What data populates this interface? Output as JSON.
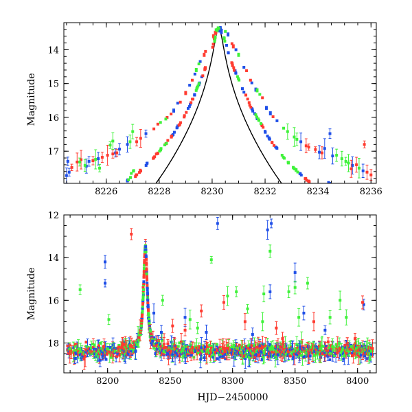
{
  "colors": {
    "red": "#ff3b30",
    "green": "#3ff23a",
    "blue": "#1f4fe8",
    "curve": "#000000"
  },
  "chart_data": [
    {
      "type": "scatter",
      "ylabel": "Magnitude",
      "xlim": [
        8224.4,
        8236.2
      ],
      "ylim": [
        17.95,
        13.2
      ],
      "inverted_y": true,
      "xticks": [
        8226,
        8228,
        8230,
        8232,
        8234,
        8236
      ],
      "yticks": [
        14,
        15,
        16,
        17
      ],
      "xtick_labels": [
        "8226",
        "8228",
        "8230",
        "8232",
        "8234",
        "8236"
      ],
      "ytick_labels": [
        "14",
        "15",
        "16",
        "17"
      ],
      "grid": false,
      "model": {
        "t0": 8230.25,
        "peak_mag": 13.35,
        "base_mag": 19.0,
        "tE": 1.6,
        "u0": 0.09
      },
      "series": [
        {
          "color": "blue",
          "points": [
            [
              8224.5,
              17.72
            ],
            [
              8224.55,
              17.3
            ],
            [
              8224.6,
              17.62
            ],
            [
              8225.25,
              17.44
            ],
            [
              8225.35,
              17.3
            ],
            [
              8225.7,
              17.22
            ],
            [
              8226.35,
              17.05
            ],
            [
              8226.5,
              16.94
            ],
            [
              8226.8,
              16.8
            ],
            [
              8227.5,
              16.48
            ],
            [
              8228.55,
              15.8
            ],
            [
              8228.7,
              15.58
            ],
            [
              8229.15,
              15.05
            ],
            [
              8229.35,
              14.72
            ],
            [
              8229.55,
              14.35
            ],
            [
              8230.25,
              13.43
            ],
            [
              8230.35,
              13.42
            ],
            [
              8230.6,
              13.55
            ],
            [
              8230.9,
              14.0
            ],
            [
              8231.2,
              14.52
            ],
            [
              8231.5,
              14.98
            ],
            [
              8231.65,
              15.18
            ],
            [
              8232.05,
              15.72
            ],
            [
              8232.2,
              15.88
            ],
            [
              8232.45,
              16.1
            ],
            [
              8233.35,
              16.72
            ],
            [
              8234.05,
              17.03
            ],
            [
              8234.25,
              16.92
            ],
            [
              8234.45,
              16.48
            ],
            [
              8234.55,
              17.14
            ],
            [
              8235.3,
              17.42
            ],
            [
              8235.7,
              17.58
            ]
          ]
        },
        {
          "color": "red",
          "points": [
            [
              8224.7,
              17.48
            ],
            [
              8224.9,
              17.32
            ],
            [
              8225.05,
              17.25
            ],
            [
              8225.5,
              17.28
            ],
            [
              8225.85,
              17.18
            ],
            [
              8226.05,
              17.12
            ],
            [
              8226.25,
              17.08
            ],
            [
              8226.4,
              17.05
            ],
            [
              8227.15,
              16.72
            ],
            [
              8227.3,
              16.62
            ],
            [
              8227.8,
              16.34
            ],
            [
              8227.95,
              16.2
            ],
            [
              8228.3,
              16.0
            ],
            [
              8228.45,
              15.9
            ],
            [
              8228.8,
              15.55
            ],
            [
              8229.0,
              15.28
            ],
            [
              8229.25,
              14.9
            ],
            [
              8229.7,
              14.15
            ],
            [
              8229.75,
              14.05
            ],
            [
              8230.05,
              13.6
            ],
            [
              8230.12,
              13.5
            ],
            [
              8230.75,
              13.82
            ],
            [
              8230.8,
              13.9
            ],
            [
              8231.3,
              14.62
            ],
            [
              8231.45,
              14.9
            ],
            [
              8231.9,
              15.42
            ],
            [
              8232.3,
              15.98
            ],
            [
              8233.55,
              16.84
            ],
            [
              8233.65,
              16.88
            ],
            [
              8233.9,
              16.95
            ],
            [
              8234.15,
              17.05
            ],
            [
              8235.25,
              17.52
            ],
            [
              8235.45,
              17.4
            ],
            [
              8235.75,
              16.8
            ],
            [
              8235.85,
              17.62
            ],
            [
              8236.0,
              17.7
            ]
          ]
        },
        {
          "color": "green",
          "points": [
            [
              8225.0,
              17.32
            ],
            [
              8225.2,
              17.42
            ],
            [
              8225.6,
              17.24
            ],
            [
              8225.75,
              17.5
            ],
            [
              8226.15,
              16.82
            ],
            [
              8226.25,
              16.7
            ],
            [
              8226.9,
              16.72
            ],
            [
              8227.0,
              16.42
            ],
            [
              8228.05,
              16.15
            ],
            [
              8228.25,
              16.05
            ],
            [
              8229.4,
              14.6
            ],
            [
              8229.5,
              14.42
            ],
            [
              8230.15,
              13.41
            ],
            [
              8230.2,
              13.4
            ],
            [
              8230.5,
              13.46
            ],
            [
              8231.0,
              14.15
            ],
            [
              8231.7,
              15.2
            ],
            [
              8231.8,
              15.32
            ],
            [
              8232.7,
              16.32
            ],
            [
              8232.85,
              16.42
            ],
            [
              8233.1,
              16.58
            ],
            [
              8233.2,
              16.65
            ],
            [
              8234.7,
              17.12
            ],
            [
              8234.9,
              17.22
            ],
            [
              8235.05,
              17.3
            ],
            [
              8235.15,
              17.35
            ],
            [
              8235.55,
              17.5
            ]
          ]
        }
      ]
    },
    {
      "type": "scatter",
      "xlabel": "HJD−2450000",
      "ylabel": "Magnitude",
      "xlim": [
        8165,
        8415
      ],
      "ylim": [
        19.4,
        12.0
      ],
      "inverted_y": true,
      "xticks": [
        8200,
        8250,
        8300,
        8350,
        8400
      ],
      "yticks": [
        12,
        14,
        16,
        18
      ],
      "xtick_labels": [
        "8200",
        "8250",
        "8300",
        "8350",
        "8400"
      ],
      "ytick_labels": [
        "12",
        "14",
        "16",
        "18"
      ],
      "grid": false,
      "baseline_mag": 18.35,
      "outliers": [
        {
          "color": "blue",
          "points": [
            [
              8198,
              14.2
            ],
            [
              8198,
              15.2
            ],
            [
              8232,
              15.7
            ],
            [
              8288,
              12.4
            ],
            [
              8328,
              12.7
            ],
            [
              8331,
              12.4
            ],
            [
              8330,
              15.6
            ],
            [
              8350,
              14.7
            ],
            [
              8357,
              16.6
            ],
            [
              8243,
              17.5
            ],
            [
              8279,
              17.5
            ],
            [
              8316,
              17.6
            ],
            [
              8374,
              17.4
            ],
            [
              8405,
              16.2
            ],
            [
              8237,
              16.6
            ],
            [
              8262,
              16.8
            ]
          ]
        },
        {
          "color": "red",
          "points": [
            [
              8219,
              12.9
            ],
            [
              8252,
              17.2
            ],
            [
              8275,
              16.5
            ],
            [
              8293,
              16.1
            ],
            [
              8310,
              17.0
            ],
            [
              8335,
              17.3
            ],
            [
              8365,
              17.0
            ],
            [
              8398,
              17.8
            ],
            [
              8404,
              16.1
            ],
            [
              8340,
              17.8
            ],
            [
              8262,
              17.4
            ]
          ]
        },
        {
          "color": "green",
          "points": [
            [
              8178,
              15.5
            ],
            [
              8201,
              16.9
            ],
            [
              8244,
              16.0
            ],
            [
              8266,
              16.9
            ],
            [
              8283,
              14.1
            ],
            [
              8296,
              15.8
            ],
            [
              8303,
              15.6
            ],
            [
              8325,
              15.7
            ],
            [
              8330,
              13.7
            ],
            [
              8345,
              15.6
            ],
            [
              8350,
              15.4
            ],
            [
              8360,
              15.2
            ],
            [
              8378,
              16.8
            ],
            [
              8386,
              16.0
            ],
            [
              8391,
              16.8
            ],
            [
              8312,
              16.4
            ],
            [
              8272,
              17.3
            ],
            [
              8324,
              17.0
            ],
            [
              8353,
              16.8
            ]
          ]
        }
      ]
    }
  ]
}
